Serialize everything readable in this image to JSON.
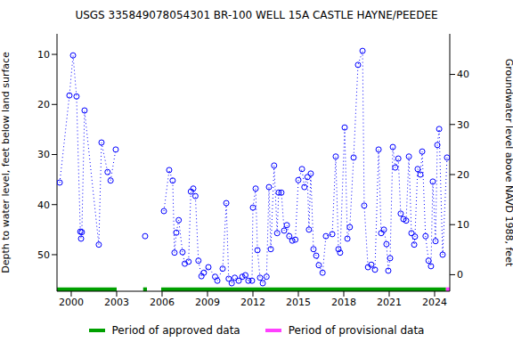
{
  "chart_data": {
    "type": "line",
    "title": "USGS 335849078054301 BR-100 WELL 15A CASTLE HAYNE/PEEDEE",
    "y_label": "Depth to water level, feet below land surface",
    "y2_label": "Groundwater level above NAVD 1988, feet",
    "x": [
      1999.24,
      1999.88,
      2000.12,
      2000.35,
      2000.6,
      2000.65,
      2000.7,
      2000.88,
      2001.82,
      2002.0,
      2002.4,
      2002.6,
      2002.94,
      2003.9,
      2004.88,
      2005.5,
      2006.12,
      2006.47,
      2006.7,
      2006.82,
      2006.94,
      2007.1,
      2007.35,
      2007.5,
      2007.75,
      2007.9,
      2008.06,
      2008.2,
      2008.4,
      2008.6,
      2008.76,
      2009.06,
      2009.5,
      2009.65,
      2010.0,
      2010.24,
      2010.4,
      2010.6,
      2010.8,
      2011.06,
      2011.3,
      2011.5,
      2011.7,
      2011.94,
      2012.0,
      2012.18,
      2012.3,
      2012.47,
      2012.65,
      2012.9,
      2013.06,
      2013.18,
      2013.4,
      2013.6,
      2013.7,
      2013.88,
      2014.06,
      2014.24,
      2014.4,
      2014.6,
      2014.8,
      2015.0,
      2015.24,
      2015.4,
      2015.6,
      2015.7,
      2015.82,
      2016.0,
      2016.18,
      2016.35,
      2016.6,
      2016.82,
      2017.24,
      2017.47,
      2017.65,
      2017.76,
      2018.06,
      2018.24,
      2018.4,
      2018.65,
      2018.94,
      2019.24,
      2019.35,
      2019.6,
      2019.82,
      2020.06,
      2020.3,
      2020.47,
      2020.65,
      2020.82,
      2020.94,
      2021.06,
      2021.24,
      2021.4,
      2021.6,
      2021.76,
      2021.94,
      2022.12,
      2022.3,
      2022.47,
      2022.65,
      2022.7,
      2022.88,
      2023.06,
      2023.18,
      2023.4,
      2023.6,
      2023.76,
      2023.88,
      2024.06,
      2024.18,
      2024.3,
      2024.53,
      2024.82
    ],
    "series": [
      {
        "name": "Depth to water level",
        "color": "#0000ff",
        "marker": "circle",
        "line_style": "dotted",
        "values": [
          35.6,
          18.2,
          10.2,
          18.4,
          45.4,
          46.8,
          45.5,
          21.2,
          48,
          27.6,
          33.5,
          35.2,
          29,
          null,
          46.3,
          null,
          41.3,
          33.1,
          35.2,
          49.6,
          45.6,
          43.1,
          49.5,
          51.8,
          51.4,
          37.4,
          36.8,
          38.3,
          51.2,
          54.3,
          53.6,
          52.5,
          54.4,
          55.2,
          52.8,
          39.7,
          54.8,
          55.7,
          54.6,
          55.2,
          54.4,
          54.1,
          55.2,
          55.2,
          40.6,
          36.8,
          49.1,
          54.6,
          55.7,
          54.4,
          36.5,
          48.9,
          32.2,
          45.7,
          37.6,
          37.6,
          45.2,
          44.1,
          46.3,
          47.2,
          47,
          35.1,
          32.9,
          36.5,
          34.5,
          45,
          33.8,
          48.9,
          50.2,
          52.1,
          53.6,
          46.3,
          45.9,
          30.4,
          48.9,
          49.6,
          24.6,
          46.8,
          44.5,
          30.6,
          12.1,
          9.3,
          40.2,
          52.5,
          52,
          53,
          29,
          45.7,
          45,
          47.9,
          53.2,
          50.7,
          28.5,
          32.6,
          30.8,
          41.8,
          42.9,
          43.2,
          30.4,
          45.7,
          48,
          46.4,
          32.9,
          34,
          29.4,
          46.3,
          51.2,
          52.3,
          35.4,
          47.3,
          28.1,
          24.9,
          50,
          30.6
        ]
      }
    ],
    "xlim": [
      1999.06,
      2025.0
    ],
    "xticks": [
      2000,
      2003,
      2006,
      2009,
      2012,
      2015,
      2018,
      2021,
      2024
    ],
    "ylim": [
      5.9,
      57.3
    ],
    "yticks": [
      10,
      20,
      30,
      40,
      50
    ],
    "y2lim": [
      -3.3,
      48.1
    ],
    "y2ticks": [
      0,
      10,
      20,
      30,
      40
    ],
    "grid": false,
    "legend": "bottom",
    "periods": [
      {
        "name": "Period of approved data",
        "color": "#00a000",
        "ranges": [
          [
            1999.06,
            2003.0
          ],
          [
            2004.75,
            2005.0
          ],
          [
            2005.94,
            2024.75
          ]
        ]
      },
      {
        "name": "Period of provisional data",
        "color": "#ff40ff",
        "ranges": [
          [
            2024.75,
            2025.0
          ]
        ]
      }
    ]
  }
}
